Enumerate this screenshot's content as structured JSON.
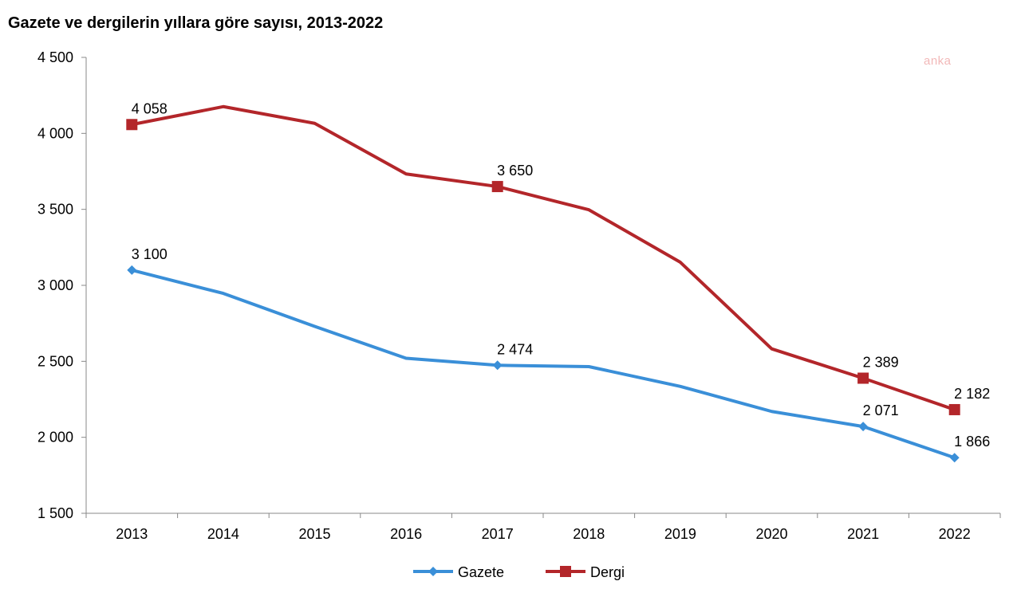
{
  "title": "Gazete ve dergilerin yıllara göre sayısı, 2013-2022",
  "watermark": "anka",
  "chart_data": {
    "type": "line",
    "title": "Gazete ve dergilerin yıllara göre sayısı, 2013-2022",
    "xlabel": "",
    "ylabel": "",
    "x": [
      "2013",
      "2014",
      "2015",
      "2016",
      "2017",
      "2018",
      "2019",
      "2020",
      "2021",
      "2022"
    ],
    "ylim": [
      1500,
      4500
    ],
    "yticks": [
      1500,
      2000,
      2500,
      3000,
      3500,
      4000,
      4500
    ],
    "ytick_labels": [
      "1 500",
      "2 000",
      "2 500",
      "3 000",
      "3 500",
      "4 000",
      "4 500"
    ],
    "grid": false,
    "legend_position": "bottom",
    "series": [
      {
        "name": "Gazete",
        "color": "#3a8fd8",
        "marker": "diamond",
        "values": [
          3100,
          2947,
          2730,
          2520,
          2474,
          2465,
          2335,
          2170,
          2071,
          1866
        ],
        "labels": [
          {
            "index": 0,
            "text": "3 100"
          },
          {
            "index": 4,
            "text": "2 474"
          },
          {
            "index": 8,
            "text": "2 071"
          },
          {
            "index": 9,
            "text": "1 866"
          }
        ]
      },
      {
        "name": "Dergi",
        "color": "#b3262a",
        "marker": "square",
        "values": [
          4058,
          4176,
          4066,
          3733,
          3650,
          3497,
          3152,
          2582,
          2389,
          2182
        ],
        "labels": [
          {
            "index": 0,
            "text": "4 058"
          },
          {
            "index": 4,
            "text": "3 650"
          },
          {
            "index": 8,
            "text": "2 389"
          },
          {
            "index": 9,
            "text": "2 182"
          }
        ]
      }
    ]
  }
}
